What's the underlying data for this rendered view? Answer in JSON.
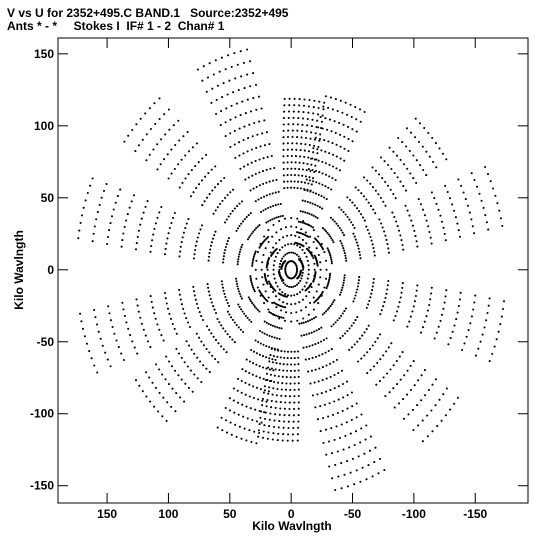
{
  "chart_data": {
    "type": "scatter",
    "title_line1": "V vs U for 2352+495.C BAND.1   Source:2352+495",
    "title_line2": "Ants * - *     Stokes I  IF# 1 - 2  Chan# 1",
    "xlabel": "Kilo Wavlngth",
    "ylabel": "Kilo Wavlngth",
    "xlim": [
      190,
      -193
    ],
    "ylim": [
      -162,
      161
    ],
    "x_ticks": [
      150,
      100,
      50,
      0,
      -50,
      -100,
      -150
    ],
    "x_tick_labels": [
      "150",
      "100",
      "50",
      "0",
      "-50",
      "-100",
      "-150"
    ],
    "y_ticks": [
      150,
      100,
      50,
      0,
      -50,
      -100,
      -150
    ],
    "y_tick_labels": [
      "150",
      "100",
      "50",
      "0",
      "-50",
      "-100",
      "-150"
    ],
    "grid": false,
    "point_color": "#000000",
    "pattern": {
      "description": "uv-coverage: symmetric pairs (u,v) and (-u,-v) along radial tracks",
      "spokes": [
        {
          "angle_deg": 15,
          "r_min": 8,
          "r_max": 175
        },
        {
          "angle_deg": 42,
          "r_min": 8,
          "r_max": 165
        },
        {
          "angle_deg": 70,
          "r_min": 40,
          "r_max": 165
        },
        {
          "angle_deg": 95,
          "r_min": 60,
          "r_max": 125
        },
        {
          "angle_deg": 110,
          "r_min": 20,
          "r_max": 130
        },
        {
          "angle_deg": 140,
          "r_min": 10,
          "r_max": 150
        },
        {
          "angle_deg": 162,
          "r_min": 10,
          "r_max": 175
        }
      ]
    }
  }
}
